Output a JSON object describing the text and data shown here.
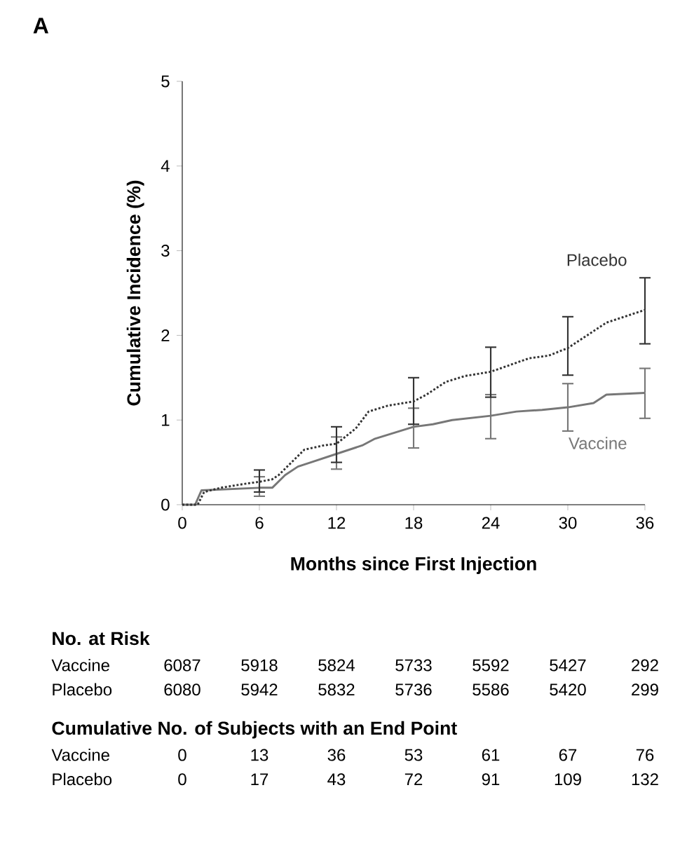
{
  "chart_data": {
    "type": "line",
    "xlabel": "Months since First Injection",
    "ylabel": "Cumulative Incidence (%)",
    "xlim": [
      0,
      36
    ],
    "ylim": [
      0,
      5
    ],
    "xticks": [
      0,
      6,
      12,
      18,
      24,
      30,
      36
    ],
    "yticks": [
      0,
      1,
      2,
      3,
      4,
      5
    ],
    "grid": false,
    "legend": false,
    "series": [
      {
        "name": "Vaccine",
        "color": "#777777",
        "line_style": "solid",
        "x": [
          0,
          1,
          1.5,
          6,
          7,
          8,
          9,
          10,
          11,
          12,
          14,
          15,
          16.5,
          18,
          19.5,
          21,
          24,
          26,
          28,
          30,
          32,
          33,
          36
        ],
        "values": [
          0,
          0,
          0.17,
          0.2,
          0.2,
          0.35,
          0.45,
          0.5,
          0.55,
          0.6,
          0.7,
          0.78,
          0.85,
          0.92,
          0.95,
          1.0,
          1.05,
          1.1,
          1.12,
          1.15,
          1.2,
          1.3,
          1.32
        ],
        "errors": [
          null,
          null,
          null,
          [
            0.1,
            0.33
          ],
          null,
          null,
          null,
          null,
          null,
          [
            0.42,
            0.8
          ],
          null,
          null,
          null,
          [
            0.67,
            1.14
          ],
          null,
          null,
          [
            0.78,
            1.3
          ],
          null,
          null,
          [
            0.87,
            1.43
          ],
          null,
          null,
          [
            1.02,
            1.61
          ]
        ]
      },
      {
        "name": "Placebo",
        "color": "#333333",
        "line_style": "dotted",
        "x": [
          0,
          1.2,
          1.7,
          3,
          5,
          6,
          7,
          7.5,
          8.5,
          9.5,
          11,
          12,
          13.5,
          14.5,
          16,
          18,
          19,
          20.5,
          22,
          24,
          25.5,
          27,
          28.5,
          30,
          31.5,
          33,
          35,
          36
        ],
        "values": [
          0,
          0,
          0.15,
          0.2,
          0.25,
          0.27,
          0.3,
          0.35,
          0.5,
          0.65,
          0.7,
          0.72,
          0.9,
          1.1,
          1.17,
          1.22,
          1.3,
          1.45,
          1.52,
          1.57,
          1.65,
          1.73,
          1.76,
          1.85,
          2.0,
          2.15,
          2.25,
          2.3
        ],
        "errors": [
          null,
          null,
          null,
          null,
          null,
          [
            0.15,
            0.41
          ],
          null,
          null,
          null,
          null,
          null,
          [
            0.5,
            0.92
          ],
          null,
          null,
          null,
          [
            0.95,
            1.5
          ],
          null,
          null,
          null,
          [
            1.27,
            1.86
          ],
          null,
          null,
          null,
          [
            1.53,
            2.22
          ],
          null,
          null,
          null,
          [
            1.9,
            2.68
          ]
        ]
      }
    ],
    "annotations": [
      "A",
      "No. at Risk",
      "Vaccine",
      "6087",
      "5918",
      "5824",
      "5733",
      "5592",
      "5427",
      "292",
      "Placebo",
      "6080",
      "5942",
      "5832",
      "5736",
      "5586",
      "5420",
      "299",
      "Cumulative No. of Subjects with an End Point",
      "Vaccine",
      "0",
      "13",
      "36",
      "53",
      "61",
      "67",
      "76",
      "Placebo",
      "0",
      "17",
      "43",
      "72",
      "91",
      "109",
      "132"
    ]
  }
}
